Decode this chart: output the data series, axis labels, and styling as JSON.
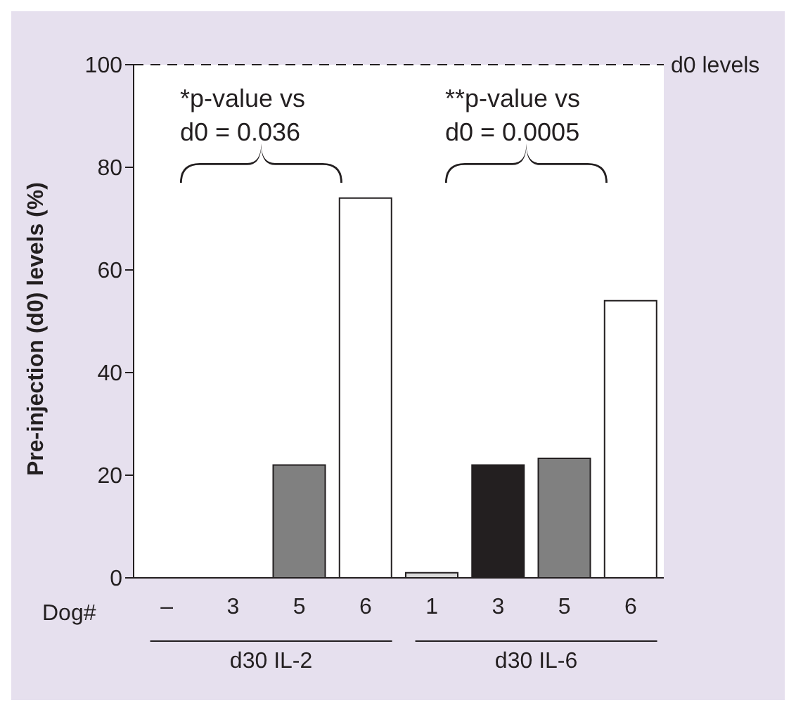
{
  "chart_data": {
    "type": "bar",
    "ylabel": "Pre-injection (d0) levels (%)",
    "xlabel": "Dog#",
    "categories": [
      "–",
      "3",
      "5",
      "6",
      "1",
      "3",
      "5",
      "6"
    ],
    "values": [
      0,
      0,
      22,
      74,
      1,
      22,
      23.3,
      54
    ],
    "colors": [
      "#ffffff",
      "#ffffff",
      "#808080",
      "#ffffff",
      "#d9d9d9",
      "#231f20",
      "#808080",
      "#ffffff"
    ],
    "ylim": [
      0,
      100
    ],
    "yticks": [
      0,
      20,
      40,
      60,
      80,
      100
    ],
    "ref_lines": [
      {
        "axis": "y",
        "value": 100,
        "label": "d0 levels",
        "line_style": "dashed",
        "color": "#231f20"
      }
    ],
    "annotations": [
      "*p-value vs\nd0 = 0.036",
      "**p-value vs\nd0 = 0.0005",
      "d30 IL-2",
      "d30 IL-6"
    ]
  }
}
